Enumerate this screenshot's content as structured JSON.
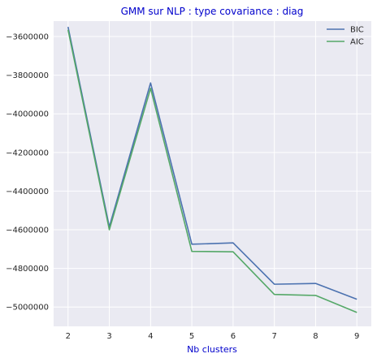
{
  "chart_data": {
    "type": "line",
    "title": "GMM sur NLP : type covariance : diag",
    "xlabel": "Nb clusters",
    "ylabel": "",
    "x": [
      2,
      3,
      4,
      5,
      6,
      7,
      8,
      9
    ],
    "xlim": [
      1.65,
      9.35
    ],
    "ylim": [
      -5100000,
      -3520000
    ],
    "xticks": [
      "2",
      "3",
      "4",
      "5",
      "6",
      "7",
      "8",
      "9"
    ],
    "yticks": [
      -3600000,
      -3800000,
      -4000000,
      -4200000,
      -4400000,
      -4600000,
      -4800000,
      -5000000
    ],
    "ytick_labels": [
      "−3600000",
      "−3800000",
      "−4000000",
      "−4200000",
      "−4400000",
      "−4600000",
      "−4800000",
      "−5000000"
    ],
    "grid": true,
    "legend_position": "top-right",
    "series": [
      {
        "name": "BIC",
        "color": "#4c72b0",
        "values": [
          -3550000,
          -4585000,
          -3840000,
          -4675000,
          -4668000,
          -4882000,
          -4878000,
          -4960000
        ]
      },
      {
        "name": "AIC",
        "color": "#55a868",
        "values": [
          -3565000,
          -4600000,
          -3868000,
          -4712000,
          -4714000,
          -4935000,
          -4940000,
          -5028000
        ]
      }
    ],
    "title_color": "#0000cc",
    "xlabel_color": "#0000cc",
    "background_color": "#eaeaf2"
  }
}
